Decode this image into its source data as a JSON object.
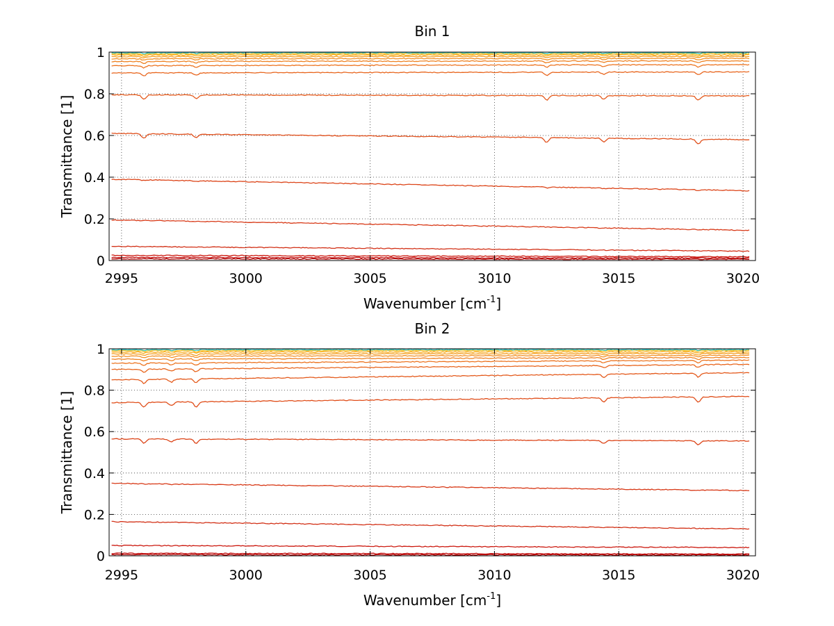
{
  "chart_data": [
    {
      "type": "line",
      "title": "Bin 1",
      "xlabel": "Wavenumber [cm",
      "xlabel_sup": "-1",
      "xlabel_suffix": "]",
      "ylabel": "Transmittance [1]",
      "xlim": [
        2994.5,
        3020.5
      ],
      "ylim": [
        0,
        1
      ],
      "grid": true,
      "xticks": [
        2995,
        3000,
        3005,
        3010,
        3015,
        3020
      ],
      "xtick_labels": [
        "2995",
        "3000",
        "3005",
        "3010",
        "3015",
        "3020"
      ],
      "yticks": [
        0,
        0.2,
        0.4,
        0.6,
        0.8,
        1
      ],
      "ytick_labels": [
        "0",
        "0.2",
        "0.4",
        "0.6",
        "0.8",
        "1"
      ],
      "absorption_lines": [
        2995.9,
        2998.0,
        3012.1,
        3014.4,
        3018.2
      ],
      "series": [
        {
          "start": 0.008,
          "end": 0.006,
          "color": "#b00000"
        },
        {
          "start": 0.015,
          "end": 0.012,
          "color": "#c00a0a"
        },
        {
          "start": 0.025,
          "end": 0.018,
          "color": "#cc1a10"
        },
        {
          "start": 0.068,
          "end": 0.045,
          "color": "#d23016"
        },
        {
          "start": 0.195,
          "end": 0.145,
          "color": "#d83a18"
        },
        {
          "start": 0.39,
          "end": 0.335,
          "color": "#dc4418"
        },
        {
          "start": 0.61,
          "end": 0.58,
          "color": "#e04e1a"
        },
        {
          "start": 0.795,
          "end": 0.79,
          "color": "#e45a1c"
        },
        {
          "start": 0.9,
          "end": 0.905,
          "color": "#e8661e"
        },
        {
          "start": 0.935,
          "end": 0.94,
          "color": "#ec7420"
        },
        {
          "start": 0.955,
          "end": 0.958,
          "color": "#ef8222"
        },
        {
          "start": 0.968,
          "end": 0.97,
          "color": "#f29024"
        },
        {
          "start": 0.978,
          "end": 0.979,
          "color": "#f59e20"
        },
        {
          "start": 0.986,
          "end": 0.987,
          "color": "#f7ac1c"
        },
        {
          "start": 0.992,
          "end": 0.993,
          "color": "#f9bb18"
        },
        {
          "start": 0.997,
          "end": 0.997,
          "color": "#2ec4c4"
        }
      ]
    },
    {
      "type": "line",
      "title": "Bin 2",
      "xlabel": "Wavenumber [cm",
      "xlabel_sup": "-1",
      "xlabel_suffix": "]",
      "ylabel": "Transmittance [1]",
      "xlim": [
        2994.5,
        3020.5
      ],
      "ylim": [
        0,
        1
      ],
      "grid": true,
      "xticks": [
        2995,
        3000,
        3005,
        3010,
        3015,
        3020
      ],
      "xtick_labels": [
        "2995",
        "3000",
        "3005",
        "3010",
        "3015",
        "3020"
      ],
      "yticks": [
        0,
        0.2,
        0.4,
        0.6,
        0.8,
        1
      ],
      "ytick_labels": [
        "0",
        "0.2",
        "0.4",
        "0.6",
        "0.8",
        "1"
      ],
      "absorption_lines": [
        2995.9,
        2997.0,
        2998.0,
        3014.4,
        3018.2
      ],
      "series": [
        {
          "start": 0.006,
          "end": 0.004,
          "color": "#b00000"
        },
        {
          "start": 0.012,
          "end": 0.009,
          "color": "#c00a0a"
        },
        {
          "start": 0.05,
          "end": 0.04,
          "color": "#cc1a10"
        },
        {
          "start": 0.165,
          "end": 0.13,
          "color": "#d23016"
        },
        {
          "start": 0.35,
          "end": 0.315,
          "color": "#d83a18"
        },
        {
          "start": 0.565,
          "end": 0.555,
          "color": "#dc4418"
        },
        {
          "start": 0.74,
          "end": 0.77,
          "color": "#e04e1a"
        },
        {
          "start": 0.85,
          "end": 0.885,
          "color": "#e45a1c"
        },
        {
          "start": 0.9,
          "end": 0.925,
          "color": "#e8661e"
        },
        {
          "start": 0.93,
          "end": 0.945,
          "color": "#ec7420"
        },
        {
          "start": 0.95,
          "end": 0.958,
          "color": "#ef8222"
        },
        {
          "start": 0.964,
          "end": 0.968,
          "color": "#f29024"
        },
        {
          "start": 0.975,
          "end": 0.977,
          "color": "#f59e20"
        },
        {
          "start": 0.984,
          "end": 0.985,
          "color": "#f7ac1c"
        },
        {
          "start": 0.991,
          "end": 0.992,
          "color": "#f9bb18"
        },
        {
          "start": 0.996,
          "end": 0.996,
          "color": "#2ec4c4"
        }
      ]
    }
  ]
}
